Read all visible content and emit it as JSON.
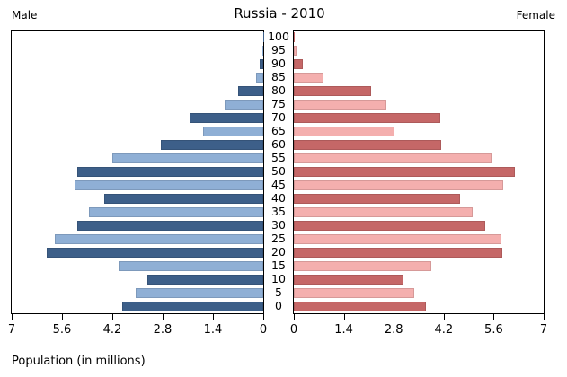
{
  "header": {
    "title": "Russia - 2010",
    "left_label": "Male",
    "right_label": "Female"
  },
  "footer": {
    "xlabel": "Population (in millions)"
  },
  "chart_data": {
    "type": "bar",
    "subtype": "population-pyramid",
    "title": "Russia - 2010",
    "xlabel": "Population (in millions)",
    "grid": false,
    "xlim": [
      0,
      7
    ],
    "x_ticks_left": [
      "7",
      "5.6",
      "4.2",
      "2.8",
      "1.4",
      "0"
    ],
    "x_ticks_right": [
      "0",
      "1.4",
      "2.8",
      "4.2",
      "5.6",
      "7"
    ],
    "age_groups": [
      "100",
      "95",
      "90",
      "85",
      "80",
      "75",
      "70",
      "65",
      "60",
      "55",
      "50",
      "45",
      "40",
      "35",
      "30",
      "25",
      "20",
      "15",
      "10",
      "5",
      "0"
    ],
    "series": [
      {
        "name": "Male",
        "side": "left",
        "values": [
          0.01,
          0.03,
          0.09,
          0.19,
          0.69,
          1.07,
          2.04,
          1.67,
          2.85,
          4.21,
          5.18,
          5.24,
          4.43,
          4.85,
          5.18,
          5.8,
          6.02,
          4.02,
          3.22,
          3.54,
          3.92
        ]
      },
      {
        "name": "Female",
        "side": "right",
        "values": [
          0.02,
          0.08,
          0.25,
          0.82,
          2.16,
          2.6,
          4.11,
          2.82,
          4.12,
          5.53,
          6.2,
          5.87,
          4.67,
          5.01,
          5.37,
          5.82,
          5.85,
          3.84,
          3.06,
          3.38,
          3.69
        ]
      }
    ],
    "colors": {
      "male_dark": "#3D5F89",
      "male_light": "#8FAFD5",
      "female_dark": "#C56767",
      "female_light": "#F4AFAE",
      "axis": "#000000"
    }
  }
}
